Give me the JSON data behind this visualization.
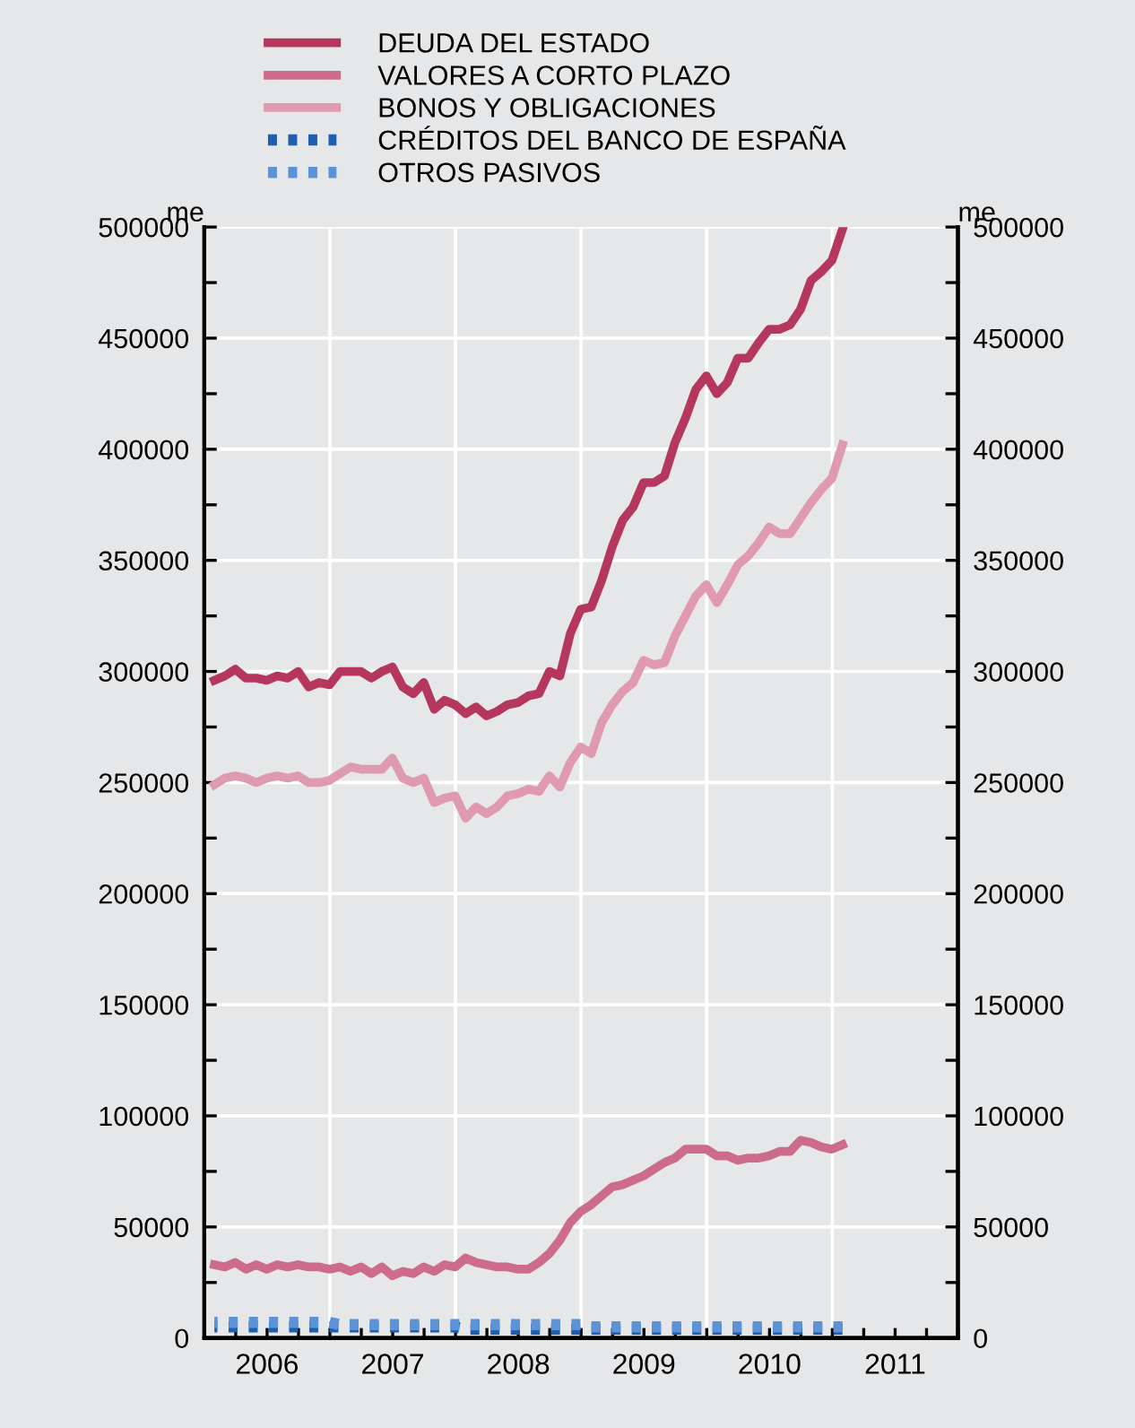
{
  "chart_data": {
    "type": "line",
    "x": [
      "2006-01-31",
      "2006-02-28",
      "2006-03-31",
      "2006-04-30",
      "2006-05-31",
      "2006-06-30",
      "2006-07-31",
      "2006-08-31",
      "2006-09-30",
      "2006-10-31",
      "2006-11-30",
      "2006-12-31",
      "2007-01-31",
      "2007-02-28",
      "2007-03-31",
      "2007-04-30",
      "2007-05-31",
      "2007-06-30",
      "2007-07-31",
      "2007-08-31",
      "2007-09-30",
      "2007-10-31",
      "2007-11-30",
      "2007-12-31",
      "2008-01-31",
      "2008-02-29",
      "2008-03-31",
      "2008-04-30",
      "2008-05-31",
      "2008-06-30",
      "2008-07-31",
      "2008-08-31",
      "2008-09-30",
      "2008-10-31",
      "2008-11-30",
      "2008-12-31",
      "2009-01-31",
      "2009-02-28",
      "2009-03-31",
      "2009-04-30",
      "2009-05-31",
      "2009-06-30",
      "2009-07-31",
      "2009-08-31",
      "2009-09-30",
      "2009-10-31",
      "2009-11-30",
      "2009-12-31",
      "2010-01-31",
      "2010-02-28",
      "2010-03-31",
      "2010-04-30",
      "2010-05-31",
      "2010-06-30",
      "2010-07-31",
      "2010-08-31",
      "2010-09-30",
      "2010-10-31",
      "2010-11-30",
      "2010-12-31",
      "2011-01-31"
    ],
    "series": [
      {
        "name": "DEUDA DEL ESTADO",
        "color": "#b5375e",
        "line_style": "solid",
        "values": [
          296000,
          298000,
          301000,
          297000,
          297000,
          296000,
          298000,
          297000,
          300000,
          293000,
          295000,
          294000,
          300000,
          300000,
          300000,
          297000,
          300000,
          302000,
          293000,
          290000,
          295000,
          283000,
          287000,
          285000,
          281000,
          284000,
          280000,
          282000,
          285000,
          286000,
          289000,
          290000,
          300000,
          298000,
          317000,
          328000,
          329000,
          341000,
          356000,
          368000,
          374000,
          385000,
          385000,
          388000,
          403000,
          414000,
          427000,
          433000,
          425000,
          430000,
          441000,
          441000,
          448000,
          454000,
          454000,
          456000,
          463000,
          476000,
          480000,
          485000,
          499000
        ]
      },
      {
        "name": "VALORES A CORTO PLAZO",
        "color": "#cc6b8c",
        "line_style": "solid",
        "values": [
          33000,
          32000,
          34000,
          31000,
          33000,
          31000,
          33000,
          32000,
          33000,
          32000,
          32000,
          31000,
          32000,
          30000,
          32000,
          29000,
          32000,
          28000,
          30000,
          29000,
          32000,
          30000,
          33000,
          32000,
          36000,
          34000,
          33000,
          32000,
          32000,
          31000,
          31000,
          34000,
          38000,
          44000,
          52000,
          57000,
          60000,
          64000,
          68000,
          69000,
          71000,
          73000,
          76000,
          79000,
          81000,
          85000,
          85000,
          85000,
          82000,
          82000,
          80000,
          81000,
          81000,
          82000,
          84000,
          84000,
          89000,
          88000,
          86000,
          85000,
          87000
        ]
      },
      {
        "name": "BONOS Y OBLIGACIONES",
        "color": "#e09ab0",
        "line_style": "solid",
        "values": [
          249000,
          252000,
          253000,
          252000,
          250000,
          252000,
          253000,
          252000,
          253000,
          250000,
          250000,
          251000,
          254000,
          257000,
          256000,
          256000,
          256000,
          261000,
          252000,
          250000,
          252000,
          241000,
          243000,
          244000,
          234000,
          239000,
          236000,
          239000,
          244000,
          245000,
          247000,
          246000,
          253000,
          248000,
          259000,
          266000,
          263000,
          277000,
          285000,
          291000,
          295000,
          305000,
          303000,
          304000,
          316000,
          325000,
          334000,
          339000,
          331000,
          339000,
          348000,
          352000,
          358000,
          365000,
          362000,
          362000,
          369000,
          376000,
          382000,
          387000,
          402000
        ]
      },
      {
        "name": "CRÉDITOS DEL BANCO DE ESPAÑA",
        "color": "#1f5fb0",
        "line_style": "dotted",
        "values": [
          5000,
          5000,
          5000,
          5000,
          5000,
          5000,
          5000,
          5000,
          5000,
          5000,
          5000,
          5000,
          5000,
          5000,
          5000,
          5000,
          5000,
          5000,
          5000,
          5000,
          5000,
          5000,
          5000,
          5000,
          4000,
          4000,
          4000,
          4000,
          4000,
          4000,
          4000,
          4000,
          4000,
          4000,
          4000,
          4000,
          4000,
          4000,
          4000,
          4000,
          4000,
          4000,
          4000,
          4000,
          4000,
          4000,
          4000,
          4000,
          4000,
          4000,
          4000,
          4000,
          4000,
          4000,
          4000,
          4000,
          4000,
          4000,
          4000,
          4000,
          4000
        ]
      },
      {
        "name": "OTROS PASIVOS",
        "color": "#5b93d6",
        "line_style": "dotted",
        "values": [
          7000,
          7000,
          7000,
          7000,
          7000,
          7000,
          7000,
          7000,
          7000,
          7000,
          7000,
          7000,
          6000,
          6000,
          6000,
          6000,
          6000,
          6000,
          6000,
          6000,
          6000,
          6000,
          6000,
          6000,
          6000,
          6000,
          6000,
          6000,
          6000,
          6000,
          6000,
          6000,
          6000,
          6000,
          6000,
          6000,
          5000,
          5000,
          5000,
          5000,
          5000,
          5000,
          5000,
          5000,
          5000,
          5000,
          5000,
          5000,
          5000,
          5000,
          5000,
          5000,
          5000,
          5000,
          5000,
          5000,
          5000,
          5000,
          5000,
          5000,
          5000
        ]
      }
    ],
    "ylabel": "me",
    "y2label": "me",
    "ylim": [
      0,
      500000
    ],
    "yticks": [
      0,
      {
        "value": 25000,
        "label": null
      },
      50000,
      {
        "value": 75000,
        "label": null
      },
      100000,
      {
        "value": 125000,
        "label": null
      },
      150000,
      {
        "value": 175000,
        "label": null
      },
      200000,
      {
        "value": 225000,
        "label": null
      },
      250000,
      {
        "value": 275000,
        "label": null
      },
      300000,
      {
        "value": 325000,
        "label": null
      },
      350000,
      {
        "value": 375000,
        "label": null
      },
      400000,
      {
        "value": 425000,
        "label": null
      },
      450000,
      {
        "value": 475000,
        "label": null
      },
      500000
    ],
    "y2lim": [
      0,
      500000
    ],
    "y2ticks": [
      0,
      {
        "value": 25000,
        "label": null
      },
      50000,
      {
        "value": 75000,
        "label": null
      },
      100000,
      {
        "value": 125000,
        "label": null
      },
      150000,
      {
        "value": 175000,
        "label": null
      },
      200000,
      {
        "value": 225000,
        "label": null
      },
      250000,
      {
        "value": 275000,
        "label": null
      },
      300000,
      {
        "value": 325000,
        "label": null
      },
      350000,
      {
        "value": 375000,
        "label": null
      },
      400000,
      {
        "value": 425000,
        "label": null
      },
      450000,
      {
        "value": 475000,
        "label": null
      },
      500000
    ],
    "xlim": [
      "2006-01-01",
      "2012-01-01"
    ],
    "xticks": [
      {
        "value": "2006-01-01",
        "label": null
      },
      {
        "value": "2006-04-01",
        "label": null
      },
      {
        "value": "2006-07-01",
        "label": "2006"
      },
      {
        "value": "2006-10-01",
        "label": null
      },
      {
        "value": "2007-01-01",
        "label": null
      },
      {
        "value": "2007-04-01",
        "label": null
      },
      {
        "value": "2007-07-01",
        "label": "2007"
      },
      {
        "value": "2007-10-01",
        "label": null
      },
      {
        "value": "2008-01-01",
        "label": null
      },
      {
        "value": "2008-04-01",
        "label": null
      },
      {
        "value": "2008-07-01",
        "label": "2008"
      },
      {
        "value": "2008-10-01",
        "label": null
      },
      {
        "value": "2009-01-01",
        "label": null
      },
      {
        "value": "2009-04-01",
        "label": null
      },
      {
        "value": "2009-07-01",
        "label": "2009"
      },
      {
        "value": "2009-10-01",
        "label": null
      },
      {
        "value": "2010-01-01",
        "label": null
      },
      {
        "value": "2010-04-01",
        "label": null
      },
      {
        "value": "2010-07-01",
        "label": "2010"
      },
      {
        "value": "2010-10-01",
        "label": null
      },
      {
        "value": "2011-01-01",
        "label": null
      },
      {
        "value": "2011-04-01",
        "label": null
      },
      {
        "value": "2011-07-01",
        "label": "2011"
      },
      {
        "value": "2011-10-01",
        "label": null
      },
      {
        "value": "2012-01-01",
        "label": null
      }
    ],
    "grid": true,
    "legend": "top",
    "marker": "none"
  }
}
